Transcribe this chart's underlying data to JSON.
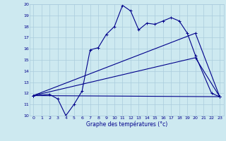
{
  "xlabel": "Graphe des températures (°c)",
  "ylabel": "",
  "xlim": [
    -0.5,
    23.5
  ],
  "ylim": [
    10,
    20
  ],
  "xticks": [
    0,
    1,
    2,
    3,
    4,
    5,
    6,
    7,
    8,
    9,
    10,
    11,
    12,
    13,
    14,
    15,
    16,
    17,
    18,
    19,
    20,
    21,
    22,
    23
  ],
  "yticks": [
    10,
    11,
    12,
    13,
    14,
    15,
    16,
    17,
    18,
    19,
    20
  ],
  "bg_color": "#cde9f0",
  "line_color": "#00008b",
  "grid_color": "#aaccdd",
  "lines": [
    {
      "x": [
        0,
        2,
        3,
        4,
        5,
        6,
        7,
        8,
        9,
        10,
        11,
        12,
        13,
        14,
        15,
        16,
        17,
        18,
        19,
        20,
        22,
        23
      ],
      "y": [
        11.8,
        11.9,
        11.5,
        10.0,
        11.0,
        12.2,
        15.9,
        16.1,
        17.3,
        18.0,
        19.9,
        19.4,
        17.7,
        18.3,
        18.2,
        18.5,
        18.8,
        18.5,
        17.4,
        15.4,
        12.0,
        11.7
      ]
    },
    {
      "x": [
        0,
        23
      ],
      "y": [
        11.8,
        11.7
      ]
    },
    {
      "x": [
        0,
        20,
        23
      ],
      "y": [
        11.8,
        15.2,
        11.7
      ]
    },
    {
      "x": [
        0,
        20,
        23
      ],
      "y": [
        11.8,
        17.4,
        11.7
      ]
    }
  ]
}
